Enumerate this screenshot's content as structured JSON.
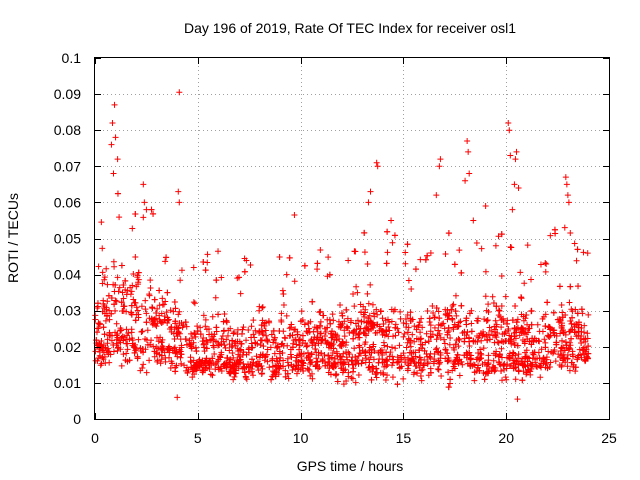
{
  "chart_data": {
    "type": "scatter",
    "title": "Day 196 of 2019, Rate Of TEC Index for receiver osl1",
    "xlabel": "GPS time / hours",
    "ylabel": "ROTI / TECUs",
    "xlim": [
      0,
      25
    ],
    "ylim": [
      0,
      0.1
    ],
    "xticks": [
      0,
      5,
      10,
      15,
      20,
      25
    ],
    "xtick_labels": [
      "0",
      "5",
      "10",
      "15",
      "20",
      "25"
    ],
    "yticks": [
      0,
      0.01,
      0.02,
      0.03,
      0.04,
      0.05,
      0.06,
      0.07,
      0.08,
      0.09,
      0.1
    ],
    "ytick_labels": [
      "0",
      "0.01",
      "0.02",
      "0.03",
      "0.04",
      "0.05",
      "0.06",
      "0.07",
      "0.08",
      "0.09",
      "0.1"
    ],
    "grid": true,
    "marker": "+",
    "marker_color": "#ff0000",
    "data_extent": {
      "x_min": 0,
      "x_max": 24
    },
    "envelope": {
      "hours": [
        0,
        0.5,
        1,
        1.5,
        2,
        2.5,
        3,
        3.5,
        4,
        4.5,
        5,
        5.5,
        6,
        6.5,
        7,
        7.5,
        8,
        8.5,
        9,
        9.5,
        10,
        10.5,
        11,
        11.5,
        12,
        12.5,
        13,
        13.5,
        14,
        14.5,
        15,
        15.5,
        16,
        16.5,
        17,
        17.5,
        18,
        18.5,
        19,
        19.5,
        20,
        20.5,
        21,
        21.5,
        22,
        22.5,
        23,
        23.5,
        24
      ],
      "low": [
        0.013,
        0.01,
        0.012,
        0.011,
        0.009,
        0.01,
        0.01,
        0.011,
        0.01,
        0.009,
        0.01,
        0.01,
        0.011,
        0.01,
        0.009,
        0.009,
        0.01,
        0.01,
        0.009,
        0.009,
        0.01,
        0.009,
        0.009,
        0.008,
        0.008,
        0.008,
        0.009,
        0.009,
        0.009,
        0.008,
        0.009,
        0.009,
        0.009,
        0.008,
        0.008,
        0.008,
        0.008,
        0.008,
        0.008,
        0.008,
        0.008,
        0.008,
        0.009,
        0.009,
        0.009,
        0.01,
        0.01,
        0.011,
        0.012
      ],
      "mid": [
        0.024,
        0.025,
        0.03,
        0.028,
        0.027,
        0.026,
        0.025,
        0.024,
        0.023,
        0.02,
        0.018,
        0.019,
        0.02,
        0.018,
        0.017,
        0.018,
        0.02,
        0.019,
        0.018,
        0.019,
        0.02,
        0.02,
        0.021,
        0.02,
        0.02,
        0.021,
        0.023,
        0.024,
        0.023,
        0.022,
        0.021,
        0.021,
        0.02,
        0.021,
        0.022,
        0.022,
        0.021,
        0.021,
        0.021,
        0.021,
        0.021,
        0.02,
        0.02,
        0.021,
        0.022,
        0.023,
        0.023,
        0.022,
        0.021
      ],
      "high": [
        0.04,
        0.046,
        0.052,
        0.05,
        0.05,
        0.048,
        0.045,
        0.043,
        0.04,
        0.032,
        0.03,
        0.034,
        0.036,
        0.033,
        0.032,
        0.033,
        0.036,
        0.035,
        0.033,
        0.034,
        0.035,
        0.035,
        0.037,
        0.036,
        0.036,
        0.037,
        0.04,
        0.043,
        0.042,
        0.04,
        0.038,
        0.038,
        0.036,
        0.038,
        0.04,
        0.04,
        0.039,
        0.04,
        0.04,
        0.039,
        0.04,
        0.038,
        0.037,
        0.039,
        0.04,
        0.042,
        0.042,
        0.04,
        0.038
      ]
    },
    "outliers": [
      {
        "x": 0.85,
        "y": 0.082
      },
      {
        "x": 0.95,
        "y": 0.087
      },
      {
        "x": 1.0,
        "y": 0.078
      },
      {
        "x": 0.8,
        "y": 0.076
      },
      {
        "x": 1.1,
        "y": 0.072
      },
      {
        "x": 0.9,
        "y": 0.068
      },
      {
        "x": 4.1,
        "y": 0.0905
      },
      {
        "x": 4.05,
        "y": 0.063
      },
      {
        "x": 4.1,
        "y": 0.06
      },
      {
        "x": 2.35,
        "y": 0.065
      },
      {
        "x": 2.4,
        "y": 0.06
      },
      {
        "x": 2.5,
        "y": 0.058
      },
      {
        "x": 9.7,
        "y": 0.0565
      },
      {
        "x": 13.4,
        "y": 0.063
      },
      {
        "x": 13.3,
        "y": 0.06
      },
      {
        "x": 13.7,
        "y": 0.071
      },
      {
        "x": 13.75,
        "y": 0.07
      },
      {
        "x": 14.4,
        "y": 0.055
      },
      {
        "x": 16.8,
        "y": 0.072
      },
      {
        "x": 16.75,
        "y": 0.07
      },
      {
        "x": 16.6,
        "y": 0.062
      },
      {
        "x": 18.1,
        "y": 0.077
      },
      {
        "x": 18.15,
        "y": 0.074
      },
      {
        "x": 18.2,
        "y": 0.068
      },
      {
        "x": 18.0,
        "y": 0.066
      },
      {
        "x": 19.0,
        "y": 0.059
      },
      {
        "x": 18.4,
        "y": 0.055
      },
      {
        "x": 20.1,
        "y": 0.082
      },
      {
        "x": 20.15,
        "y": 0.08
      },
      {
        "x": 20.2,
        "y": 0.073
      },
      {
        "x": 20.5,
        "y": 0.074
      },
      {
        "x": 20.45,
        "y": 0.072
      },
      {
        "x": 20.4,
        "y": 0.065
      },
      {
        "x": 20.6,
        "y": 0.064
      },
      {
        "x": 20.3,
        "y": 0.058
      },
      {
        "x": 20.55,
        "y": 0.0055
      },
      {
        "x": 22.9,
        "y": 0.067
      },
      {
        "x": 22.95,
        "y": 0.065
      },
      {
        "x": 23.0,
        "y": 0.062
      },
      {
        "x": 23.05,
        "y": 0.06
      },
      {
        "x": 22.85,
        "y": 0.053
      },
      {
        "x": 4.0,
        "y": 0.006
      }
    ]
  }
}
